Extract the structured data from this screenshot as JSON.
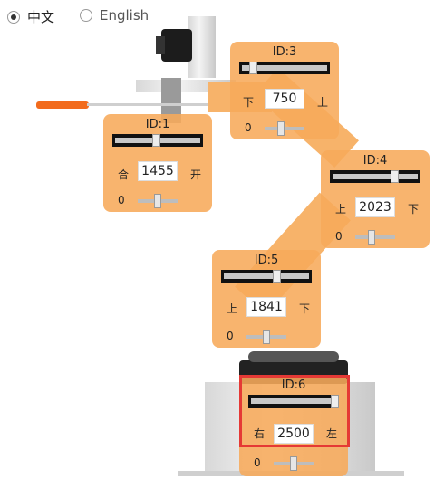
{
  "language": {
    "options": [
      {
        "label": "中文",
        "selected": true
      },
      {
        "label": "English",
        "selected": false
      }
    ]
  },
  "servos": [
    {
      "id_label": "ID:1",
      "value": "1455",
      "left_label": "合",
      "right_label": "开",
      "offset": "0",
      "slider_fraction": 0.48
    },
    {
      "id_label": "ID:3",
      "value": "750",
      "left_label": "下",
      "right_label": "上",
      "offset": "0",
      "slider_fraction": 0.12
    },
    {
      "id_label": "ID:4",
      "value": "2023",
      "left_label": "上",
      "right_label": "下",
      "offset": "0",
      "slider_fraction": 0.74
    },
    {
      "id_label": "ID:5",
      "value": "1841",
      "left_label": "上",
      "right_label": "下",
      "offset": "0",
      "slider_fraction": 0.63
    },
    {
      "id_label": "ID:6",
      "value": "2500",
      "left_label": "右",
      "right_label": "左",
      "offset": "0",
      "slider_fraction": 1.0
    }
  ],
  "colors": {
    "panel": "#f7aa5a",
    "highlight": "#e53935"
  }
}
